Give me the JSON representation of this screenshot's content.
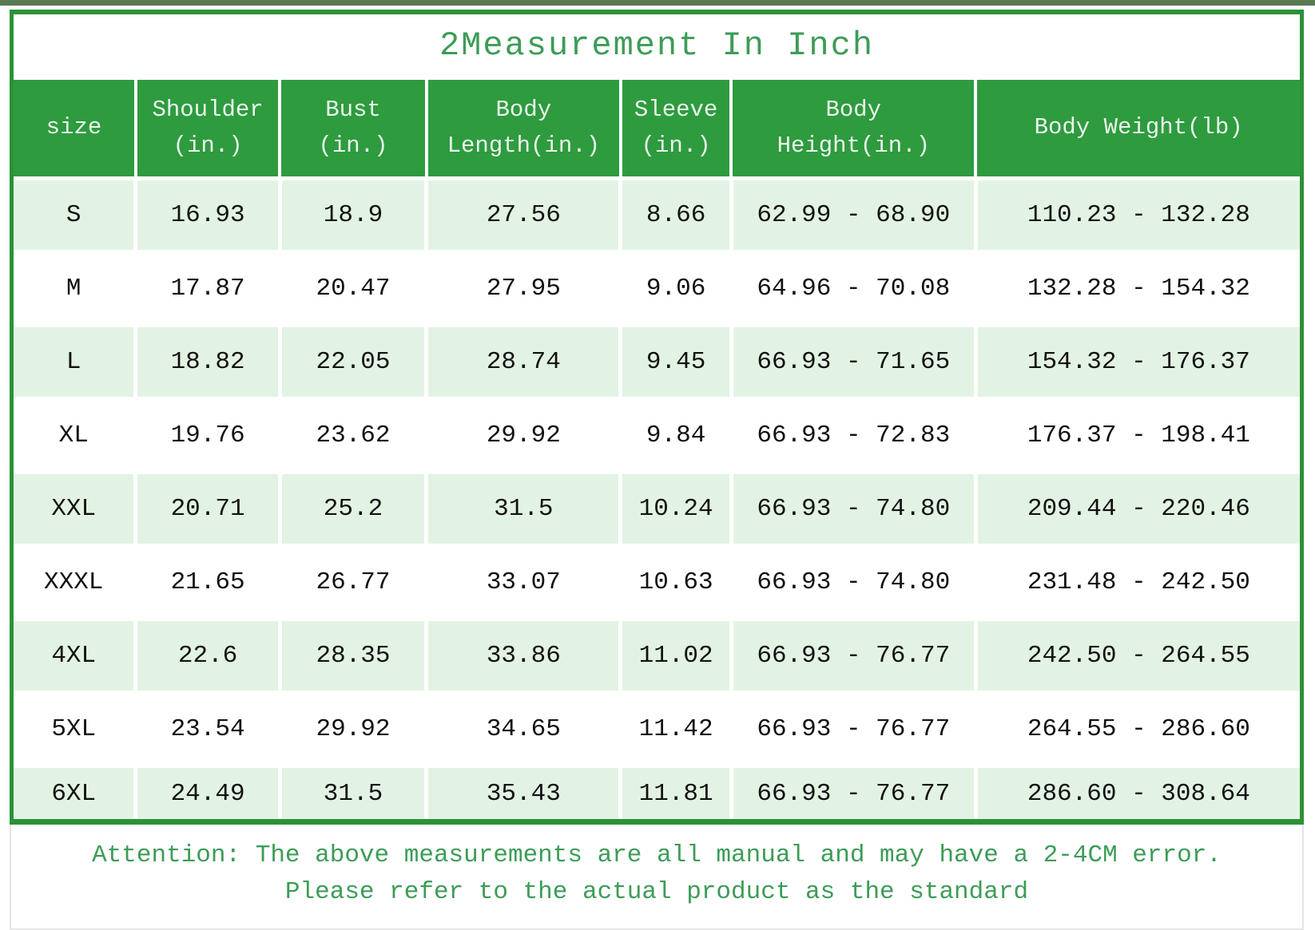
{
  "title": "2Measurement In Inch",
  "table": {
    "columns": [
      "size",
      "Shoulder\n(in.)",
      "Bust\n(in.)",
      "Body\nLength(in.)",
      "Sleeve\n(in.)",
      "Body\nHeight(in.)",
      "Body Weight(lb)"
    ],
    "rows": [
      [
        "S",
        "16.93",
        "18.9",
        "27.56",
        "8.66",
        "62.99 - 68.90",
        "110.23 - 132.28"
      ],
      [
        "M",
        "17.87",
        "20.47",
        "27.95",
        "9.06",
        "64.96 - 70.08",
        "132.28 - 154.32"
      ],
      [
        "L",
        "18.82",
        "22.05",
        "28.74",
        "9.45",
        "66.93 - 71.65",
        "154.32 - 176.37"
      ],
      [
        "XL",
        "19.76",
        "23.62",
        "29.92",
        "9.84",
        "66.93 - 72.83",
        "176.37 - 198.41"
      ],
      [
        "XXL",
        "20.71",
        "25.2",
        "31.5",
        "10.24",
        "66.93 - 74.80",
        "209.44 - 220.46"
      ],
      [
        "XXXL",
        "21.65",
        "26.77",
        "33.07",
        "10.63",
        "66.93 - 74.80",
        "231.48 - 242.50"
      ],
      [
        "4XL",
        "22.6",
        "28.35",
        "33.86",
        "11.02",
        "66.93 - 76.77",
        "242.50 - 264.55"
      ],
      [
        "5XL",
        "23.54",
        "29.92",
        "34.65",
        "11.42",
        "66.93 - 76.77",
        "264.55 - 286.60"
      ],
      [
        "6XL",
        "24.49",
        "31.5",
        "35.43",
        "11.81",
        "66.93 - 76.77",
        "286.60 - 308.64"
      ]
    ]
  },
  "note": {
    "line1": "Attention: The above measurements are all manual and may have a 2-4CM error.",
    "line2": "Please refer to the actual product as the standard"
  },
  "colors": {
    "header_bg": "#2e9b3f",
    "frame_border": "#2c9138",
    "alt_row_bg": "#e2f3e3",
    "header_text": "#eaf6ec",
    "accent_text_green": "#3d9c57",
    "data_text": "#111111",
    "top_strip": "#5a7a52",
    "note_border": "#e5e5e5"
  }
}
